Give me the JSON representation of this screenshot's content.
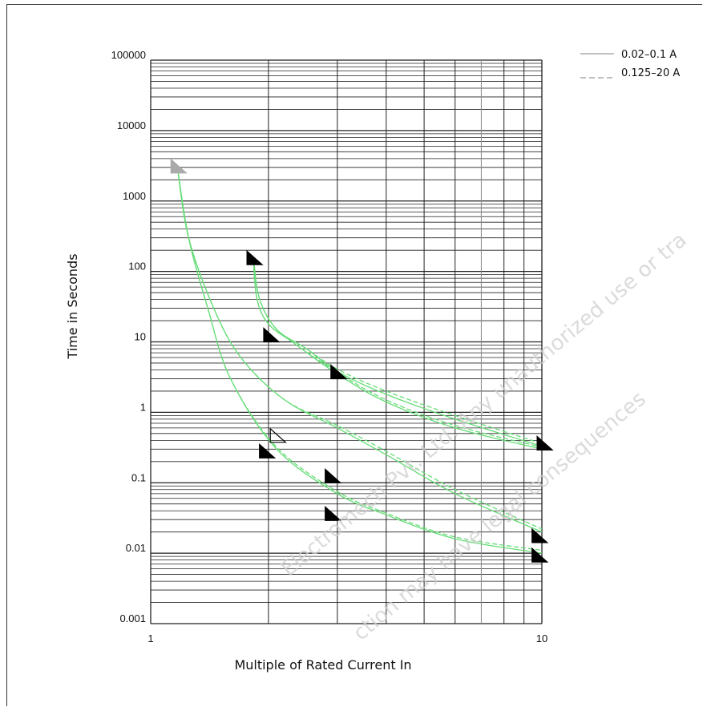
{
  "chart_data": {
    "type": "line",
    "title": "",
    "xlabel": "Multiple of Rated Current In",
    "ylabel": "Time in Seconds",
    "xscale": "log",
    "yscale": "log",
    "xlim": [
      1,
      10
    ],
    "ylim": [
      0.001,
      100000
    ],
    "x_tick_labels": [
      "1",
      "10"
    ],
    "y_tick_labels": [
      "0.001",
      "0.01",
      "0.1",
      "1",
      "10",
      "100",
      "1000",
      "10000",
      "100000"
    ],
    "grid": true,
    "legend_position": "top-right",
    "legend": [
      {
        "label": "0.02–0.1 A",
        "style": "solid"
      },
      {
        "label": "0.125–20 A",
        "style": "dashed"
      }
    ],
    "curve_color": "#66dd77",
    "series": [
      {
        "group": "left-upper",
        "style": "solid",
        "points": [
          [
            1.17,
            3000
          ],
          [
            1.25,
            300
          ],
          [
            1.45,
            30
          ],
          [
            1.7,
            6
          ],
          [
            2.2,
            1.5
          ],
          [
            3,
            0.6
          ],
          [
            4,
            0.25
          ],
          [
            6,
            0.07
          ],
          [
            10,
            0.02
          ]
        ]
      },
      {
        "group": "left-upper",
        "style": "dashed",
        "points": [
          [
            1.17,
            3000
          ],
          [
            1.25,
            300
          ],
          [
            1.45,
            30
          ],
          [
            1.7,
            6
          ],
          [
            2.2,
            1.5
          ],
          [
            3,
            0.65
          ],
          [
            4,
            0.28
          ],
          [
            6,
            0.08
          ],
          [
            10,
            0.022
          ]
        ]
      },
      {
        "group": "left-lower",
        "style": "solid",
        "points": [
          [
            1.17,
            3000
          ],
          [
            1.25,
            300
          ],
          [
            1.4,
            30
          ],
          [
            1.6,
            3
          ],
          [
            2.1,
            0.3
          ],
          [
            3,
            0.07
          ],
          [
            4,
            0.035
          ],
          [
            6,
            0.016
          ],
          [
            10,
            0.01
          ]
        ]
      },
      {
        "group": "left-lower",
        "style": "dashed",
        "points": [
          [
            1.17,
            3000
          ],
          [
            1.25,
            300
          ],
          [
            1.4,
            30
          ],
          [
            1.6,
            3
          ],
          [
            2.1,
            0.32
          ],
          [
            3,
            0.075
          ],
          [
            4,
            0.037
          ],
          [
            6,
            0.017
          ],
          [
            10,
            0.011
          ]
        ]
      },
      {
        "group": "right-upper",
        "style": "solid",
        "points": [
          [
            1.83,
            150
          ],
          [
            1.9,
            40
          ],
          [
            2.1,
            15
          ],
          [
            2.5,
            8
          ],
          [
            3,
            3.8
          ],
          [
            4,
            1.8
          ],
          [
            6,
            0.8
          ],
          [
            10,
            0.33
          ]
        ]
      },
      {
        "group": "right-upper",
        "style": "dashed",
        "points": [
          [
            1.83,
            150
          ],
          [
            1.9,
            40
          ],
          [
            2.1,
            15
          ],
          [
            2.5,
            8
          ],
          [
            3,
            4.1
          ],
          [
            4,
            2.0
          ],
          [
            6,
            0.9
          ],
          [
            10,
            0.36
          ]
        ]
      },
      {
        "group": "right-lower",
        "style": "solid",
        "points": [
          [
            1.83,
            150
          ],
          [
            1.87,
            40
          ],
          [
            2.0,
            18
          ],
          [
            2.3,
            10
          ],
          [
            3,
            3.5
          ],
          [
            4,
            1.4
          ],
          [
            6,
            0.6
          ],
          [
            10,
            0.3
          ]
        ]
      },
      {
        "group": "right-lower",
        "style": "dashed",
        "points": [
          [
            1.83,
            150
          ],
          [
            1.87,
            40
          ],
          [
            2.0,
            18
          ],
          [
            2.3,
            10
          ],
          [
            3,
            3.7
          ],
          [
            4,
            1.5
          ],
          [
            6,
            0.65
          ],
          [
            10,
            0.32
          ]
        ]
      }
    ],
    "markers": [
      {
        "x": 1.17,
        "y": 3000,
        "fill": "#aaaaaa"
      },
      {
        "x": 1.83,
        "y": 150,
        "fill": "#000000"
      },
      {
        "x": 2.02,
        "y": 12,
        "fill": "#000000"
      },
      {
        "x": 3.0,
        "y": 3.6,
        "fill": "#000000"
      },
      {
        "x": 10.1,
        "y": 0.35,
        "fill": "#000000"
      },
      {
        "x": 2.1,
        "y": 0.45,
        "fill": "none"
      },
      {
        "x": 1.97,
        "y": 0.27,
        "fill": "#000000"
      },
      {
        "x": 2.9,
        "y": 0.12,
        "fill": "#000000"
      },
      {
        "x": 2.9,
        "y": 0.035,
        "fill": "#000000"
      },
      {
        "x": 9.8,
        "y": 0.017,
        "fill": "#000000"
      },
      {
        "x": 9.8,
        "y": 0.009,
        "fill": "#000000"
      }
    ]
  },
  "watermark": {
    "line1": "Electromech Pvt. Ltd. Any unauthorized use or tra",
    "line2": "ction may have legal consequences"
  }
}
